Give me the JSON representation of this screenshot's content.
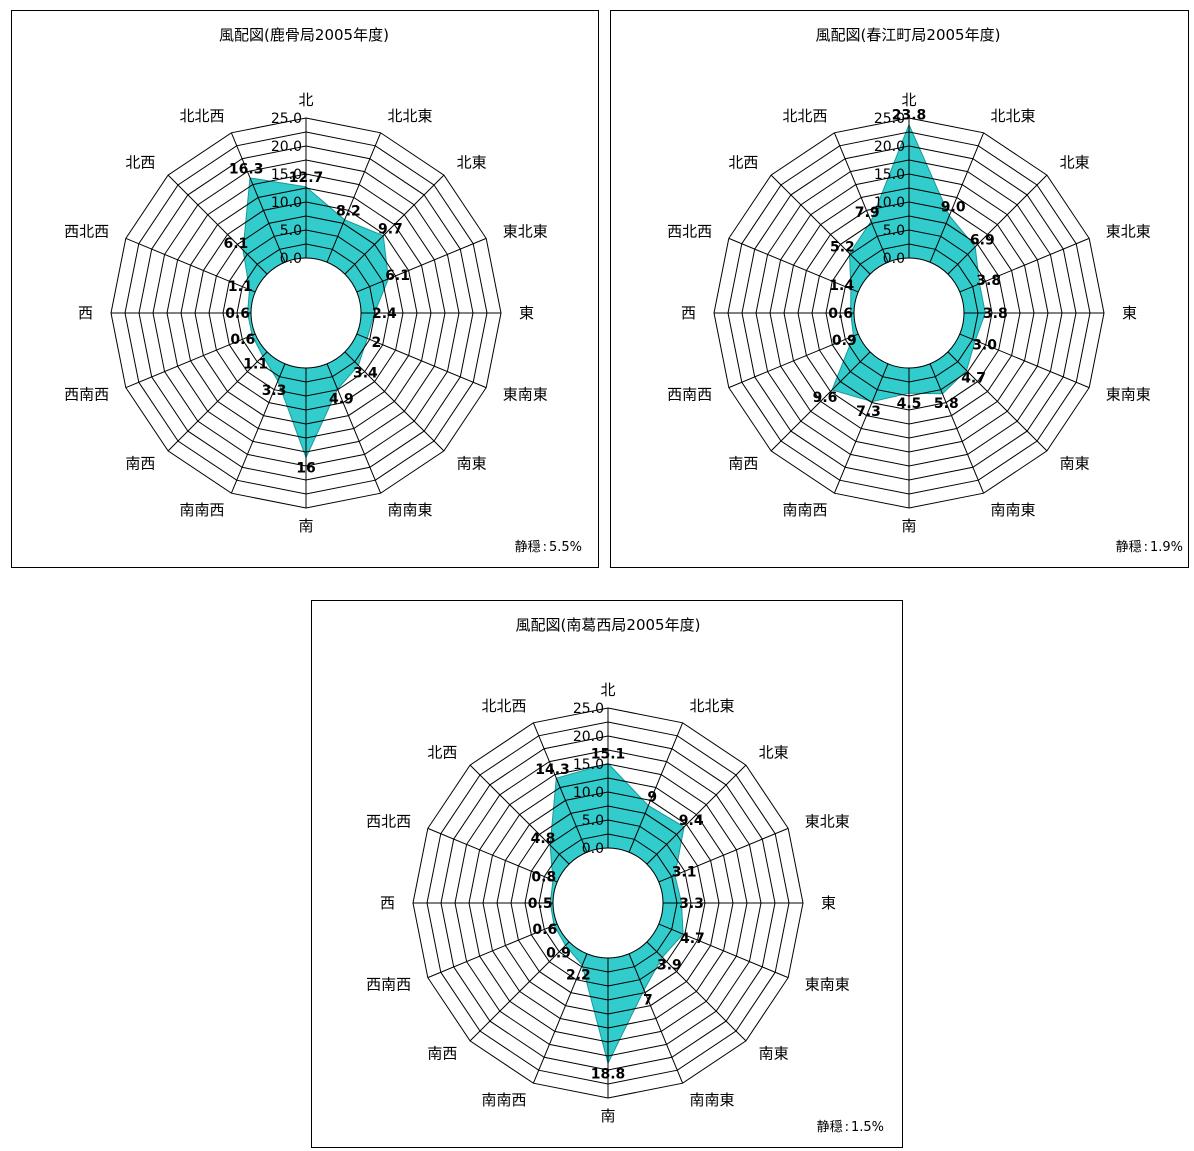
{
  "colors": {
    "fill": "#33cccc",
    "line": "#000000",
    "background": "#ffffff"
  },
  "directions": [
    "北",
    "北北東",
    "北東",
    "東北東",
    "東",
    "東南東",
    "南東",
    "南南東",
    "南",
    "南南西",
    "南西",
    "西南西",
    "西",
    "西北西",
    "北西",
    "北北西"
  ],
  "ticks": [
    "0.0",
    "5.0",
    "10.0",
    "15.0",
    "20.0",
    "25.0"
  ],
  "chart_data": [
    {
      "type": "radar",
      "title": "風配図(鹿骨局2005年度)",
      "categories": [
        "北",
        "北北東",
        "北東",
        "東北東",
        "東",
        "東南東",
        "南東",
        "南南東",
        "南",
        "南南西",
        "南西",
        "西南西",
        "西",
        "西北西",
        "北西",
        "北北西"
      ],
      "values": [
        12.7,
        8.2,
        9.7,
        6.1,
        2.4,
        2,
        3.4,
        4.9,
        16,
        3.3,
        1.1,
        0.6,
        0.6,
        1.1,
        6.1,
        16.3
      ],
      "value_labels": [
        "12.7",
        "8.2",
        "9.7",
        "6.1",
        "2.4",
        "2",
        "3.4",
        "4.9",
        "16",
        "3.3",
        "1.1",
        "0.6",
        "0.6",
        "1.1",
        "6.1",
        "16.3"
      ],
      "rlim": [
        0,
        25
      ],
      "calm_label": "静穏",
      "calm_value": "5.5%"
    },
    {
      "type": "radar",
      "title": "風配図(春江町局2005年度)",
      "categories": [
        "北",
        "北北東",
        "北東",
        "東北東",
        "東",
        "東南東",
        "南東",
        "南南東",
        "南",
        "南南西",
        "南西",
        "西南西",
        "西",
        "西北西",
        "北西",
        "北北西"
      ],
      "values": [
        23.8,
        9.0,
        6.9,
        3.8,
        3.8,
        3.0,
        4.7,
        5.8,
        4.5,
        7.3,
        9.6,
        0.9,
        0.6,
        1.4,
        5.2,
        7.9
      ],
      "value_labels": [
        "23.8",
        "9.0",
        "6.9",
        "3.8",
        "3.8",
        "3.0",
        "4.7",
        "5.8",
        "4.5",
        "7.3",
        "9.6",
        "0.9",
        "0.6",
        "1.4",
        "5.2",
        "7.9"
      ],
      "rlim": [
        0,
        25
      ],
      "calm_label": "静穏",
      "calm_value": "1.9%"
    },
    {
      "type": "radar",
      "title": "風配図(南葛西局2005年度)",
      "categories": [
        "北",
        "北北東",
        "北東",
        "東北東",
        "東",
        "東南東",
        "南東",
        "南南東",
        "南",
        "南南西",
        "南西",
        "西南西",
        "西",
        "西北西",
        "北西",
        "北北西"
      ],
      "values": [
        15.1,
        9,
        9.4,
        3.1,
        3.3,
        4.7,
        3.9,
        7,
        18.8,
        2.2,
        0.9,
        0.6,
        0.5,
        0.8,
        4.8,
        14.3
      ],
      "value_labels": [
        "15.1",
        "9",
        "9.4",
        "3.1",
        "3.3",
        "4.7",
        "3.9",
        "7",
        "18.8",
        "2.2",
        "0.9",
        "0.6",
        "0.5",
        "0.8",
        "4.8",
        "14.3"
      ],
      "rlim": [
        0,
        25
      ],
      "calm_label": "静穏",
      "calm_value": "1.5%"
    }
  ]
}
